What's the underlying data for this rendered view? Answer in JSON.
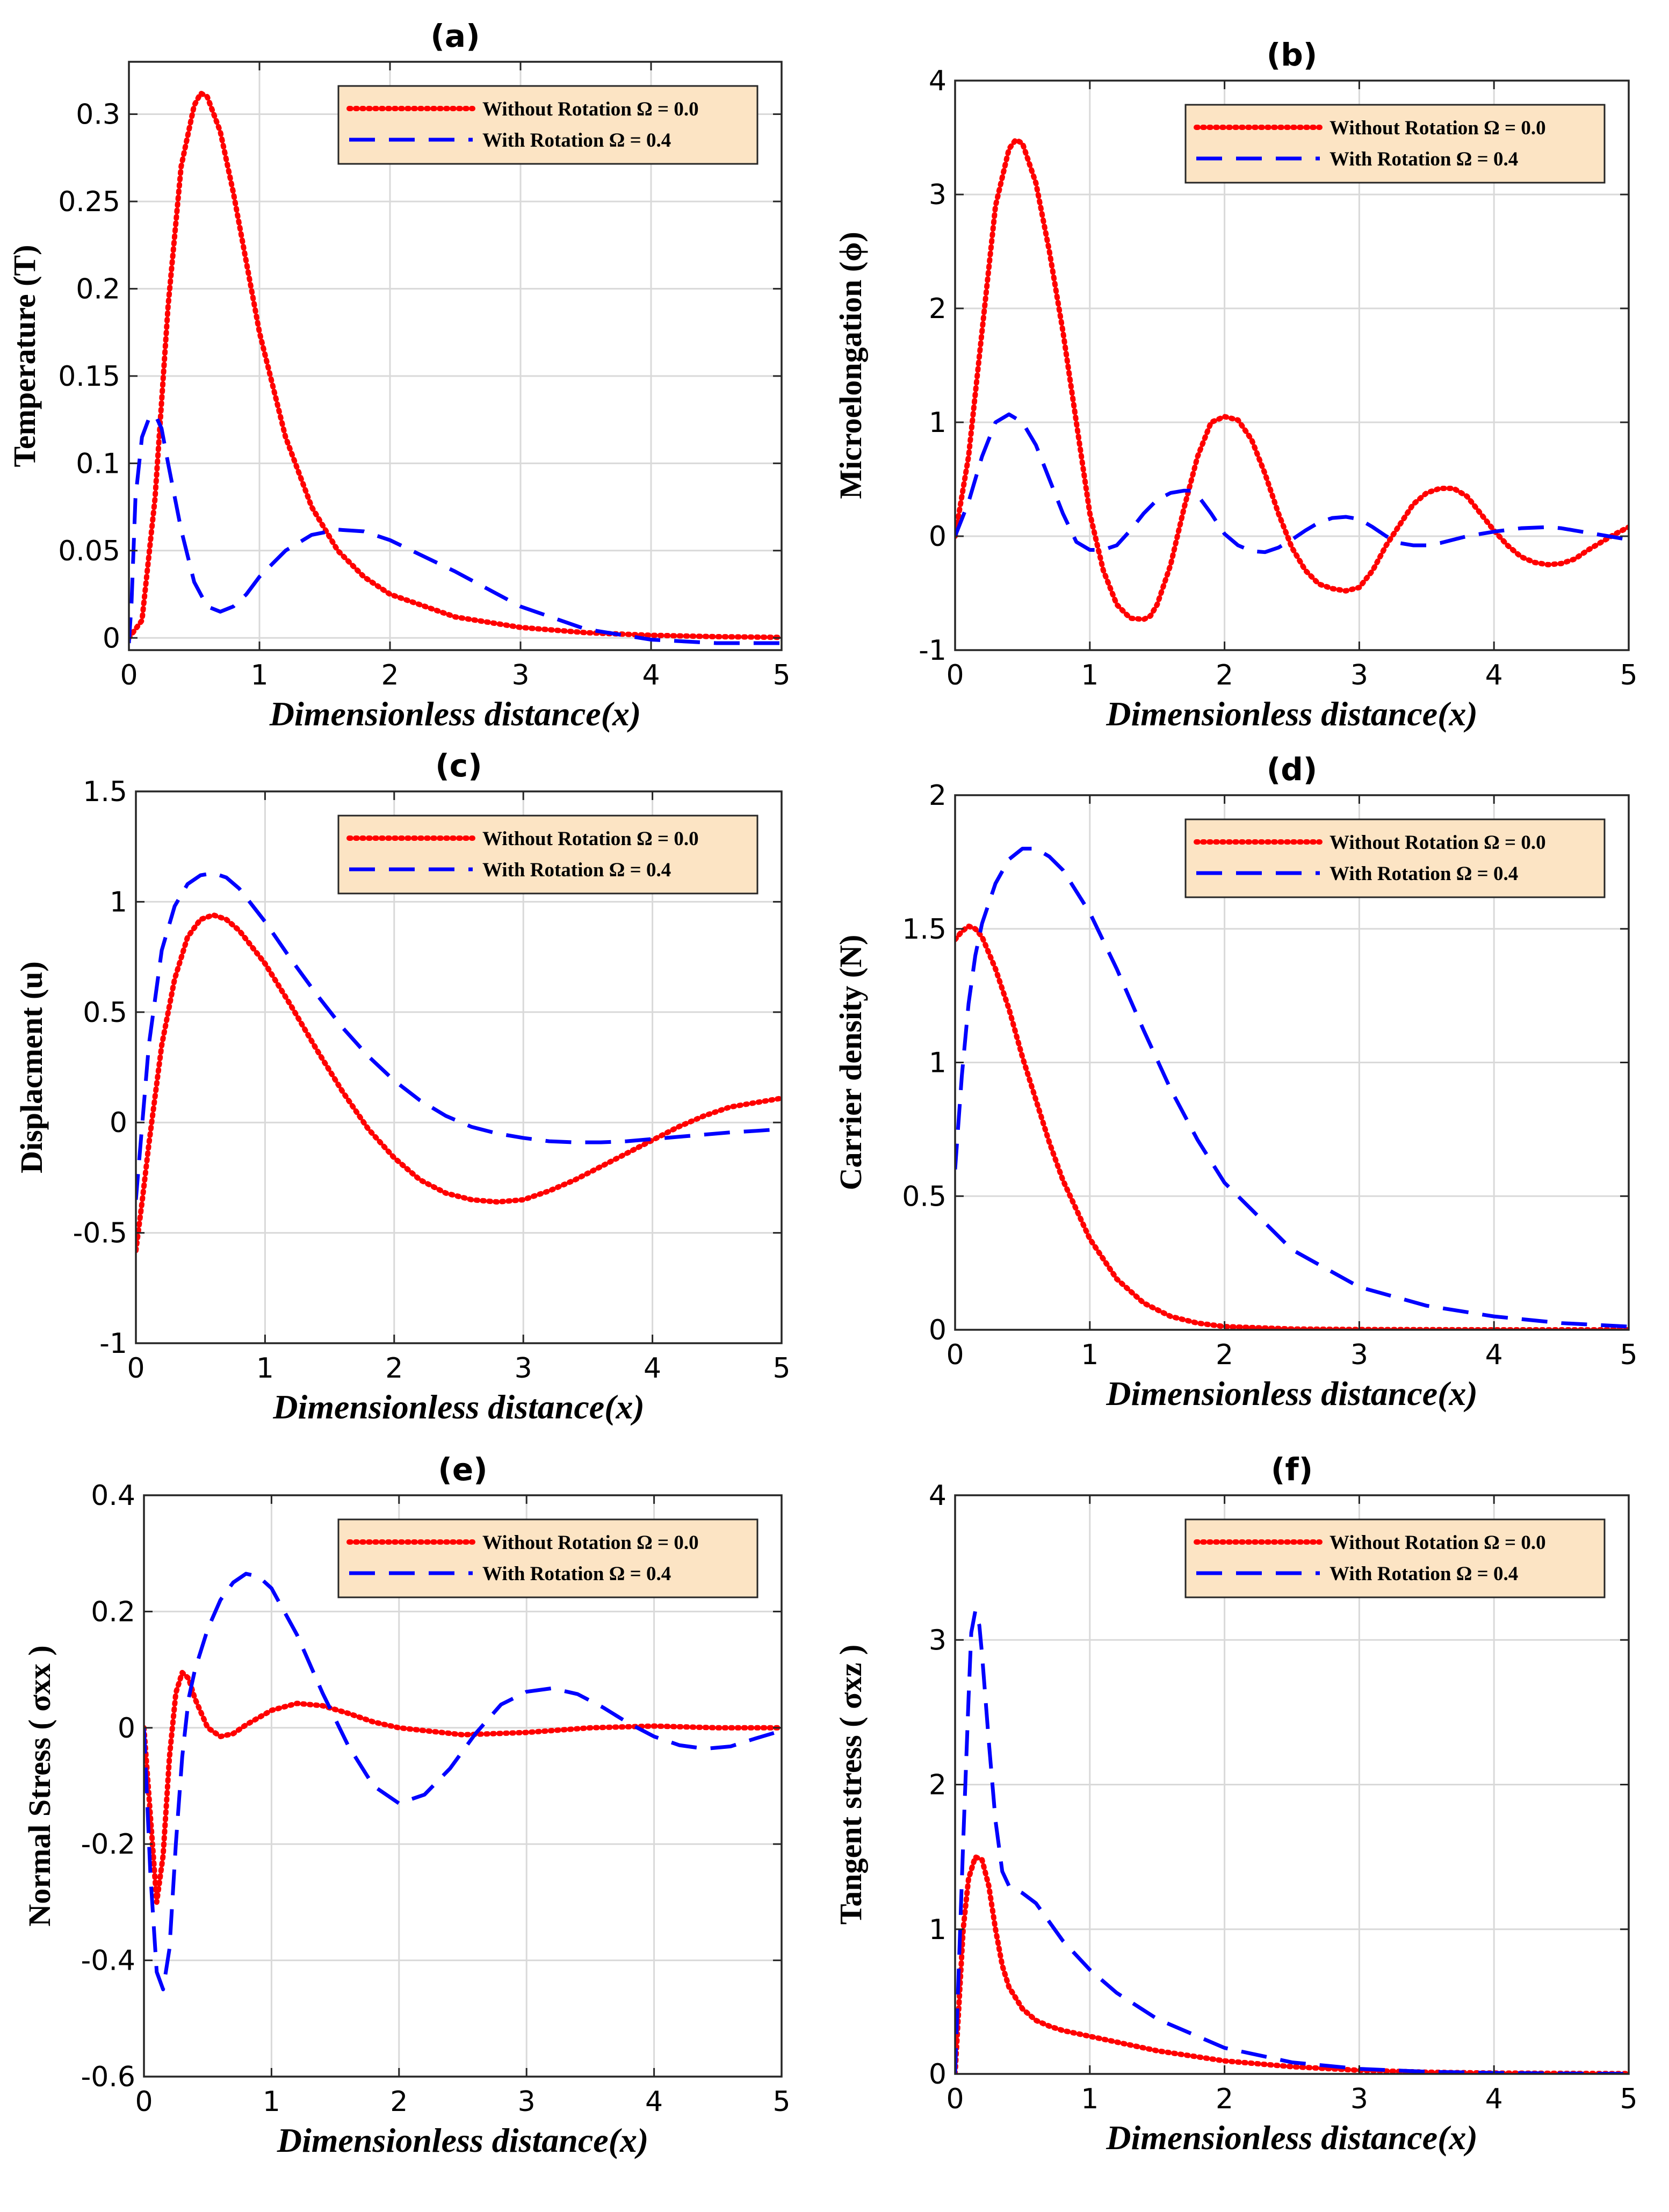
{
  "figure": {
    "colors": {
      "without_rotation": "#ff0000",
      "with_rotation": "#0000ff",
      "legend_bg": "#fce4c4",
      "grid": "#d9d9d9",
      "axis": "#262626"
    }
  },
  "chart_data": [
    {
      "id": "a",
      "type": "line",
      "title": "(a)",
      "xlabel": "Dimensionless distance(x)",
      "ylabel": "Temperature (T)",
      "xlim": [
        0,
        5
      ],
      "ylim": [
        -0.007,
        0.33
      ],
      "xticks": [
        0,
        1,
        2,
        3,
        4,
        5
      ],
      "xtick_labels": [
        "0",
        "1",
        "2",
        "3",
        "4",
        "5"
      ],
      "yticks": [
        0,
        0.05,
        0.1,
        0.15,
        0.2,
        0.25,
        0.3
      ],
      "ytick_labels": [
        "0",
        "0.05",
        "0.1",
        "0.15",
        "0.2",
        "0.25",
        "0.3"
      ],
      "grid": true,
      "legend_position": "top-right",
      "series": [
        {
          "name": "Without Rotation Ω = 0.0",
          "style": "dotted",
          "color": "#ff0000",
          "x": [
            0,
            0.1,
            0.2,
            0.3,
            0.4,
            0.5,
            0.55,
            0.6,
            0.7,
            0.8,
            1.0,
            1.2,
            1.4,
            1.6,
            1.8,
            2.0,
            2.5,
            3.0,
            3.5,
            4.0,
            4.5,
            5.0
          ],
          "y": [
            0,
            0.01,
            0.08,
            0.19,
            0.27,
            0.305,
            0.312,
            0.31,
            0.29,
            0.255,
            0.175,
            0.115,
            0.075,
            0.05,
            0.035,
            0.025,
            0.012,
            0.006,
            0.003,
            0.0015,
            0.0007,
            0.0003
          ]
        },
        {
          "name": "With Rotation Ω = 0.4",
          "style": "dashed",
          "color": "#0000ff",
          "x": [
            0,
            0.02,
            0.05,
            0.1,
            0.15,
            0.2,
            0.25,
            0.3,
            0.4,
            0.5,
            0.6,
            0.7,
            0.8,
            0.9,
            1.0,
            1.2,
            1.4,
            1.6,
            1.8,
            2.0,
            2.5,
            3.0,
            3.5,
            4.0,
            4.5,
            5.0
          ],
          "y": [
            -0.003,
            0.02,
            0.08,
            0.115,
            0.125,
            0.128,
            0.12,
            0.1,
            0.062,
            0.032,
            0.018,
            0.015,
            0.018,
            0.025,
            0.035,
            0.05,
            0.059,
            0.062,
            0.061,
            0.056,
            0.038,
            0.018,
            0.005,
            -0.001,
            -0.003,
            -0.003
          ]
        }
      ]
    },
    {
      "id": "b",
      "type": "line",
      "title": "(b)",
      "xlabel": "Dimensionless distance(x)",
      "ylabel": "Microelongation (ϕ)",
      "xlim": [
        0,
        5
      ],
      "ylim": [
        -1,
        4
      ],
      "xticks": [
        0,
        1,
        2,
        3,
        4,
        5
      ],
      "xtick_labels": [
        "0",
        "1",
        "2",
        "3",
        "4",
        "5"
      ],
      "yticks": [
        -1,
        0,
        1,
        2,
        3,
        4
      ],
      "ytick_labels": [
        "-1",
        "0",
        "1",
        "2",
        "3",
        "4"
      ],
      "grid": true,
      "legend_position": "top-right",
      "series": [
        {
          "name": "Without Rotation Ω = 0.0",
          "style": "dotted",
          "color": "#ff0000",
          "x": [
            0,
            0.1,
            0.2,
            0.3,
            0.4,
            0.45,
            0.5,
            0.6,
            0.7,
            0.8,
            0.9,
            1.0,
            1.1,
            1.2,
            1.3,
            1.4,
            1.45,
            1.5,
            1.6,
            1.7,
            1.8,
            1.9,
            2.0,
            2.1,
            2.2,
            2.3,
            2.4,
            2.5,
            2.6,
            2.7,
            2.8,
            2.9,
            3.0,
            3.1,
            3.2,
            3.3,
            3.4,
            3.5,
            3.6,
            3.7,
            3.8,
            3.9,
            4.0,
            4.1,
            4.2,
            4.3,
            4.4,
            4.5,
            4.6,
            4.7,
            4.8,
            4.9,
            5.0
          ],
          "y": [
            0,
            0.7,
            1.8,
            2.9,
            3.4,
            3.48,
            3.45,
            3.1,
            2.5,
            1.8,
            1.0,
            0.2,
            -0.3,
            -0.6,
            -0.72,
            -0.73,
            -0.7,
            -0.6,
            -0.25,
            0.25,
            0.7,
            1.0,
            1.05,
            1.02,
            0.85,
            0.55,
            0.2,
            -0.1,
            -0.3,
            -0.42,
            -0.46,
            -0.48,
            -0.45,
            -0.3,
            -0.08,
            0.1,
            0.28,
            0.38,
            0.42,
            0.42,
            0.35,
            0.2,
            0.05,
            -0.08,
            -0.18,
            -0.23,
            -0.25,
            -0.24,
            -0.2,
            -0.12,
            -0.05,
            0.02,
            0.08
          ]
        },
        {
          "name": "With Rotation Ω = 0.4",
          "style": "dashed",
          "color": "#0000ff",
          "x": [
            0,
            0.1,
            0.2,
            0.3,
            0.4,
            0.5,
            0.6,
            0.7,
            0.8,
            0.9,
            1.0,
            1.1,
            1.2,
            1.3,
            1.4,
            1.5,
            1.6,
            1.7,
            1.75,
            1.8,
            1.9,
            2.0,
            2.1,
            2.2,
            2.3,
            2.4,
            2.5,
            2.6,
            2.7,
            2.8,
            2.9,
            3.0,
            3.1,
            3.2,
            3.3,
            3.4,
            3.5,
            3.6,
            3.7,
            3.8,
            3.9,
            4.0,
            4.2,
            4.4,
            4.5,
            4.6,
            4.8,
            5.0
          ],
          "y": [
            0,
            0.3,
            0.7,
            1.0,
            1.07,
            1.0,
            0.8,
            0.5,
            0.2,
            -0.05,
            -0.12,
            -0.12,
            -0.08,
            0.05,
            0.2,
            0.32,
            0.38,
            0.4,
            0.4,
            0.36,
            0.2,
            0.02,
            -0.08,
            -0.13,
            -0.14,
            -0.1,
            -0.03,
            0.05,
            0.12,
            0.16,
            0.17,
            0.15,
            0.08,
            0.0,
            -0.06,
            -0.08,
            -0.08,
            -0.06,
            -0.03,
            0.0,
            0.02,
            0.04,
            0.07,
            0.08,
            0.07,
            0.05,
            0.01,
            -0.03
          ]
        }
      ]
    },
    {
      "id": "c",
      "type": "line",
      "title": "(c)",
      "xlabel": "Dimensionless distance(x)",
      "ylabel": "Displacment (u)",
      "xlim": [
        0,
        5
      ],
      "ylim": [
        -1,
        1.5
      ],
      "xticks": [
        0,
        1,
        2,
        3,
        4,
        5
      ],
      "xtick_labels": [
        "0",
        "1",
        "2",
        "3",
        "4",
        "5"
      ],
      "yticks": [
        -1,
        -0.5,
        0,
        0.5,
        1,
        1.5
      ],
      "ytick_labels": [
        "-1",
        "-0.5",
        "0",
        "0.5",
        "1",
        "1.5"
      ],
      "grid": true,
      "legend_position": "top-right",
      "series": [
        {
          "name": "Without Rotation Ω = 0.0",
          "style": "dotted",
          "color": "#ff0000",
          "x": [
            0,
            0.05,
            0.1,
            0.2,
            0.3,
            0.4,
            0.5,
            0.6,
            0.7,
            0.8,
            1.0,
            1.2,
            1.4,
            1.6,
            1.8,
            2.0,
            2.2,
            2.4,
            2.6,
            2.8,
            3.0,
            3.2,
            3.4,
            3.6,
            3.8,
            4.0,
            4.2,
            4.4,
            4.6,
            4.8,
            5.0
          ],
          "y": [
            -0.58,
            -0.35,
            -0.1,
            0.35,
            0.65,
            0.84,
            0.92,
            0.94,
            0.92,
            0.87,
            0.72,
            0.53,
            0.33,
            0.14,
            -0.03,
            -0.16,
            -0.26,
            -0.32,
            -0.35,
            -0.36,
            -0.35,
            -0.31,
            -0.26,
            -0.2,
            -0.14,
            -0.08,
            -0.02,
            0.03,
            0.07,
            0.09,
            0.11
          ]
        },
        {
          "name": "With Rotation Ω = 0.4",
          "style": "dashed",
          "color": "#0000ff",
          "x": [
            0,
            0.05,
            0.1,
            0.2,
            0.3,
            0.4,
            0.5,
            0.6,
            0.7,
            0.8,
            1.0,
            1.2,
            1.4,
            1.6,
            1.8,
            2.0,
            2.2,
            2.4,
            2.6,
            2.8,
            3.0,
            3.2,
            3.4,
            3.6,
            3.8,
            4.0,
            4.2,
            4.4,
            4.6,
            4.8,
            5.0
          ],
          "y": [
            -0.35,
            0.0,
            0.35,
            0.78,
            0.98,
            1.08,
            1.12,
            1.13,
            1.11,
            1.06,
            0.91,
            0.74,
            0.58,
            0.43,
            0.3,
            0.19,
            0.1,
            0.03,
            -0.02,
            -0.05,
            -0.07,
            -0.085,
            -0.09,
            -0.09,
            -0.085,
            -0.075,
            -0.065,
            -0.055,
            -0.045,
            -0.038,
            -0.03
          ]
        }
      ]
    },
    {
      "id": "d",
      "type": "line",
      "title": "(d)",
      "xlabel": "Dimensionless distance(x)",
      "ylabel": "Carrier density (N)",
      "xlim": [
        0,
        5
      ],
      "ylim": [
        0,
        2
      ],
      "xticks": [
        0,
        1,
        2,
        3,
        4,
        5
      ],
      "xtick_labels": [
        "0",
        "1",
        "2",
        "3",
        "4",
        "5"
      ],
      "yticks": [
        0,
        0.5,
        1,
        1.5,
        2
      ],
      "ytick_labels": [
        "0",
        "0.5",
        "1",
        "1.5",
        "2"
      ],
      "grid": true,
      "legend_position": "top-right",
      "series": [
        {
          "name": "Without Rotation Ω = 0.0",
          "style": "dotted",
          "color": "#ff0000",
          "x": [
            0,
            0.05,
            0.1,
            0.15,
            0.2,
            0.3,
            0.4,
            0.5,
            0.6,
            0.7,
            0.8,
            1.0,
            1.2,
            1.4,
            1.6,
            1.8,
            2.0,
            2.5,
            3.0,
            4.0,
            5.0
          ],
          "y": [
            1.46,
            1.49,
            1.51,
            1.5,
            1.47,
            1.35,
            1.2,
            1.02,
            0.86,
            0.7,
            0.56,
            0.34,
            0.19,
            0.1,
            0.05,
            0.025,
            0.012,
            0.003,
            0.001,
            0.0,
            0.0
          ]
        },
        {
          "name": "With Rotation Ω = 0.4",
          "style": "dashed",
          "color": "#0000ff",
          "x": [
            0,
            0.05,
            0.1,
            0.15,
            0.2,
            0.3,
            0.4,
            0.5,
            0.6,
            0.7,
            0.8,
            1.0,
            1.2,
            1.4,
            1.6,
            1.8,
            2.0,
            2.5,
            3.0,
            3.5,
            4.0,
            4.5,
            5.0
          ],
          "y": [
            0.6,
            0.95,
            1.22,
            1.4,
            1.52,
            1.67,
            1.76,
            1.8,
            1.8,
            1.77,
            1.72,
            1.56,
            1.35,
            1.12,
            0.9,
            0.71,
            0.55,
            0.3,
            0.16,
            0.09,
            0.05,
            0.025,
            0.012
          ]
        }
      ]
    },
    {
      "id": "e",
      "type": "line",
      "title": "(e)",
      "xlabel": "Dimensionless distance(x)",
      "ylabel": "Normal Stress ( σxx )",
      "xlim": [
        0,
        5
      ],
      "ylim": [
        -0.6,
        0.4
      ],
      "xticks": [
        0,
        1,
        2,
        3,
        4,
        5
      ],
      "xtick_labels": [
        "0",
        "1",
        "2",
        "3",
        "4",
        "5"
      ],
      "yticks": [
        -0.6,
        -0.4,
        -0.2,
        0,
        0.2,
        0.4
      ],
      "ytick_labels": [
        "-0.6",
        "-0.4",
        "-0.2",
        "0",
        "0.2",
        "0.4"
      ],
      "grid": true,
      "legend_position": "top-right",
      "series": [
        {
          "name": "Without Rotation Ω = 0.0",
          "style": "dotted",
          "color": "#ff0000",
          "x": [
            0,
            0.05,
            0.1,
            0.15,
            0.2,
            0.25,
            0.3,
            0.35,
            0.4,
            0.5,
            0.6,
            0.7,
            0.8,
            1.0,
            1.2,
            1.4,
            1.6,
            1.8,
            2.0,
            2.5,
            3.0,
            3.5,
            4.0,
            4.5,
            5.0
          ],
          "y": [
            0,
            -0.15,
            -0.3,
            -0.22,
            -0.05,
            0.06,
            0.095,
            0.085,
            0.05,
            0.0,
            -0.015,
            -0.01,
            0.005,
            0.03,
            0.042,
            0.038,
            0.025,
            0.01,
            0.0,
            -0.012,
            -0.008,
            0.0,
            0.003,
            0.0,
            0.0
          ]
        },
        {
          "name": "With Rotation Ω = 0.4",
          "style": "dashed",
          "color": "#0000ff",
          "x": [
            0,
            0.05,
            0.1,
            0.15,
            0.2,
            0.25,
            0.3,
            0.35,
            0.4,
            0.5,
            0.6,
            0.7,
            0.8,
            0.9,
            1.0,
            1.2,
            1.4,
            1.6,
            1.8,
            2.0,
            2.2,
            2.4,
            2.6,
            2.8,
            3.0,
            3.2,
            3.4,
            3.6,
            3.8,
            4.0,
            4.2,
            4.4,
            4.6,
            4.8,
            5.0
          ],
          "y": [
            0,
            -0.25,
            -0.42,
            -0.45,
            -0.38,
            -0.2,
            -0.05,
            0.05,
            0.1,
            0.17,
            0.22,
            0.25,
            0.265,
            0.26,
            0.24,
            0.16,
            0.06,
            -0.03,
            -0.1,
            -0.13,
            -0.115,
            -0.07,
            -0.01,
            0.04,
            0.062,
            0.068,
            0.058,
            0.035,
            0.008,
            -0.015,
            -0.03,
            -0.036,
            -0.032,
            -0.018,
            -0.005
          ]
        }
      ]
    },
    {
      "id": "f",
      "type": "line",
      "title": "(f)",
      "xlabel": "Dimensionless distance(x)",
      "ylabel": "Tangent stress ( σxz )",
      "xlim": [
        0,
        5
      ],
      "ylim": [
        0,
        4
      ],
      "xticks": [
        0,
        1,
        2,
        3,
        4,
        5
      ],
      "xtick_labels": [
        "0",
        "1",
        "2",
        "3",
        "4",
        "5"
      ],
      "yticks": [
        0,
        1,
        2,
        3,
        4
      ],
      "ytick_labels": [
        "0",
        "1",
        "2",
        "3",
        "4"
      ],
      "grid": true,
      "legend_position": "top-right",
      "series": [
        {
          "name": "Without Rotation Ω = 0.0",
          "style": "dotted",
          "color": "#ff0000",
          "x": [
            0,
            0.03,
            0.06,
            0.1,
            0.15,
            0.2,
            0.25,
            0.3,
            0.35,
            0.4,
            0.5,
            0.6,
            0.7,
            0.8,
            1.0,
            1.2,
            1.5,
            2.0,
            2.5,
            3.0,
            3.5,
            4.0,
            5.0
          ],
          "y": [
            0,
            0.5,
            1.0,
            1.35,
            1.5,
            1.48,
            1.3,
            1.0,
            0.75,
            0.6,
            0.45,
            0.37,
            0.33,
            0.3,
            0.26,
            0.22,
            0.16,
            0.09,
            0.05,
            0.025,
            0.012,
            0.006,
            0.002
          ]
        },
        {
          "name": "With Rotation Ω = 0.4",
          "style": "dashed",
          "color": "#0000ff",
          "x": [
            0,
            0.03,
            0.06,
            0.1,
            0.12,
            0.15,
            0.18,
            0.2,
            0.25,
            0.3,
            0.35,
            0.4,
            0.5,
            0.6,
            0.7,
            0.8,
            1.0,
            1.2,
            1.5,
            2.0,
            2.5,
            3.0,
            3.5,
            4.0,
            4.5,
            5.0
          ],
          "y": [
            0,
            0.8,
            1.6,
            2.6,
            3.05,
            3.2,
            3.1,
            2.9,
            2.3,
            1.75,
            1.4,
            1.3,
            1.25,
            1.18,
            1.05,
            0.92,
            0.72,
            0.56,
            0.38,
            0.18,
            0.08,
            0.035,
            0.015,
            0.007,
            0.003,
            0.001
          ]
        }
      ]
    }
  ]
}
